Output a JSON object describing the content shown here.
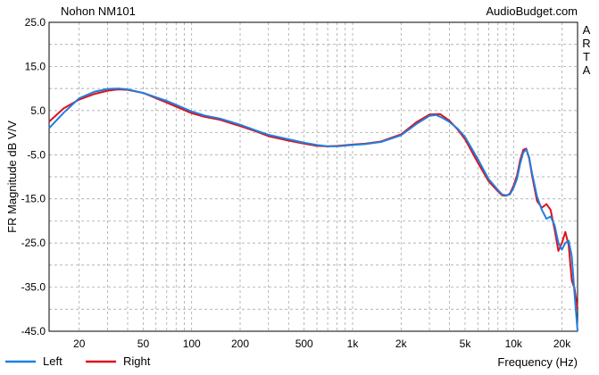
{
  "chart_data": {
    "type": "line",
    "title_left": "Nohon NM101",
    "title_right": "AudioBudget.com",
    "side_label": [
      "A",
      "R",
      "T",
      "A"
    ],
    "xlabel": "Frequency (Hz)",
    "ylabel": "FR Magnitude dB V/V",
    "x_scale": "log",
    "xlim": [
      13,
      25000
    ],
    "ylim": [
      -45,
      25
    ],
    "y_ticks": [
      "25.0",
      "15.0",
      "5.0",
      "-5.0",
      "-15.0",
      "-25.0",
      "-35.0",
      "-45.0"
    ],
    "x_ticks": [
      {
        "value": 20,
        "label": "20"
      },
      {
        "value": 50,
        "label": "50"
      },
      {
        "value": 100,
        "label": "100"
      },
      {
        "value": 200,
        "label": "200"
      },
      {
        "value": 500,
        "label": "500"
      },
      {
        "value": 1000,
        "label": "1k"
      },
      {
        "value": 2000,
        "label": "2k"
      },
      {
        "value": 5000,
        "label": "5k"
      },
      {
        "value": 10000,
        "label": "10k"
      },
      {
        "value": 20000,
        "label": "20k"
      }
    ],
    "grid": true,
    "legend_position": "bottom-left",
    "series": [
      {
        "name": "Left",
        "color": "#1f7fe0",
        "points": [
          [
            13,
            1.0
          ],
          [
            16,
            4.5
          ],
          [
            20,
            7.8
          ],
          [
            25,
            9.3
          ],
          [
            30,
            9.9
          ],
          [
            35,
            10.0
          ],
          [
            40,
            9.8
          ],
          [
            50,
            9.0
          ],
          [
            60,
            8.0
          ],
          [
            70,
            7.2
          ],
          [
            80,
            6.3
          ],
          [
            100,
            4.8
          ],
          [
            120,
            3.9
          ],
          [
            150,
            3.2
          ],
          [
            200,
            1.8
          ],
          [
            250,
            0.5
          ],
          [
            300,
            -0.5
          ],
          [
            400,
            -1.5
          ],
          [
            500,
            -2.3
          ],
          [
            600,
            -2.8
          ],
          [
            700,
            -3.1
          ],
          [
            800,
            -3.1
          ],
          [
            1000,
            -2.8
          ],
          [
            1200,
            -2.6
          ],
          [
            1500,
            -2.1
          ],
          [
            2000,
            -0.6
          ],
          [
            2500,
            2.0
          ],
          [
            3000,
            3.8
          ],
          [
            3300,
            4.0
          ],
          [
            3600,
            3.4
          ],
          [
            4000,
            2.4
          ],
          [
            4500,
            0.9
          ],
          [
            5000,
            -1.0
          ],
          [
            6000,
            -6.0
          ],
          [
            7000,
            -10.5
          ],
          [
            8000,
            -13.0
          ],
          [
            8500,
            -14.0
          ],
          [
            9000,
            -14.2
          ],
          [
            9500,
            -14.0
          ],
          [
            10000,
            -12.5
          ],
          [
            10500,
            -10.5
          ],
          [
            11000,
            -7.0
          ],
          [
            11500,
            -4.5
          ],
          [
            12000,
            -3.8
          ],
          [
            12500,
            -5.5
          ],
          [
            13000,
            -9.0
          ],
          [
            14000,
            -14.5
          ],
          [
            15000,
            -17.5
          ],
          [
            16000,
            -19.5
          ],
          [
            17000,
            -19.0
          ],
          [
            18000,
            -21.0
          ],
          [
            19000,
            -25.0
          ],
          [
            20000,
            -26.5
          ],
          [
            21000,
            -25.0
          ],
          [
            22000,
            -24.5
          ],
          [
            23000,
            -28.0
          ],
          [
            24000,
            -37.0
          ],
          [
            25000,
            -45.0
          ]
        ]
      },
      {
        "name": "Right",
        "color": "#e0101a",
        "points": [
          [
            13,
            2.5
          ],
          [
            16,
            5.5
          ],
          [
            20,
            7.5
          ],
          [
            25,
            8.8
          ],
          [
            30,
            9.5
          ],
          [
            35,
            9.8
          ],
          [
            40,
            9.7
          ],
          [
            50,
            9.0
          ],
          [
            60,
            7.8
          ],
          [
            70,
            6.8
          ],
          [
            80,
            5.9
          ],
          [
            100,
            4.4
          ],
          [
            120,
            3.6
          ],
          [
            150,
            2.9
          ],
          [
            200,
            1.5
          ],
          [
            250,
            0.3
          ],
          [
            300,
            -0.8
          ],
          [
            400,
            -1.8
          ],
          [
            500,
            -2.5
          ],
          [
            600,
            -3.0
          ],
          [
            700,
            -3.1
          ],
          [
            800,
            -3.0
          ],
          [
            1000,
            -2.7
          ],
          [
            1200,
            -2.5
          ],
          [
            1500,
            -2.0
          ],
          [
            2000,
            -0.4
          ],
          [
            2500,
            2.4
          ],
          [
            3000,
            4.1
          ],
          [
            3500,
            4.2
          ],
          [
            4000,
            2.7
          ],
          [
            4500,
            0.7
          ],
          [
            5000,
            -1.5
          ],
          [
            6000,
            -6.8
          ],
          [
            7000,
            -11.0
          ],
          [
            8000,
            -13.3
          ],
          [
            8500,
            -14.2
          ],
          [
            9000,
            -14.3
          ],
          [
            9500,
            -13.8
          ],
          [
            10000,
            -12.0
          ],
          [
            10500,
            -9.8
          ],
          [
            11000,
            -6.2
          ],
          [
            11500,
            -3.9
          ],
          [
            12000,
            -3.6
          ],
          [
            12500,
            -5.8
          ],
          [
            13000,
            -9.5
          ],
          [
            14000,
            -15.5
          ],
          [
            15000,
            -17.0
          ],
          [
            16000,
            -16.2
          ],
          [
            17000,
            -17.5
          ],
          [
            18000,
            -22.0
          ],
          [
            19000,
            -26.8
          ],
          [
            20000,
            -25.0
          ],
          [
            21000,
            -22.5
          ],
          [
            22000,
            -25.5
          ],
          [
            23000,
            -33.5
          ],
          [
            24000,
            -35.5
          ],
          [
            25000,
            -40.0
          ]
        ]
      }
    ]
  }
}
